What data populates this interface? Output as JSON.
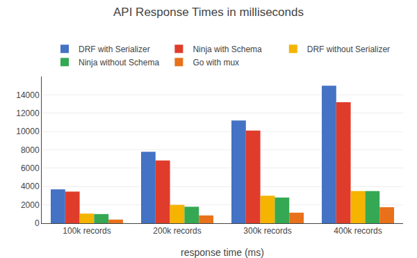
{
  "chart_data": {
    "type": "bar",
    "title": "API Response Times in milliseconds",
    "xlabel": "response time (ms)",
    "categories": [
      "100k records",
      "200k records",
      "300k records",
      "400k records"
    ],
    "series": [
      {
        "name": "DRF with Serializer",
        "color": "#4472C4",
        "values": [
          3700,
          7800,
          11200,
          15000
        ]
      },
      {
        "name": "Ninja with Schema",
        "color": "#E03C2B",
        "values": [
          3450,
          6850,
          10100,
          13200
        ]
      },
      {
        "name": "DRF without Serializer",
        "color": "#F4B400",
        "values": [
          1050,
          2000,
          3000,
          3500
        ]
      },
      {
        "name": "Ninja without Schema",
        "color": "#34A853",
        "values": [
          1000,
          1800,
          2800,
          3500
        ]
      },
      {
        "name": "Go with mux",
        "color": "#E8711A",
        "values": [
          400,
          850,
          1150,
          1750
        ]
      }
    ],
    "ylim": [
      0,
      16000
    ],
    "yticks": [
      0,
      2000,
      4000,
      6000,
      8000,
      10000,
      12000,
      14000
    ],
    "grid": true,
    "legend": "top"
  }
}
